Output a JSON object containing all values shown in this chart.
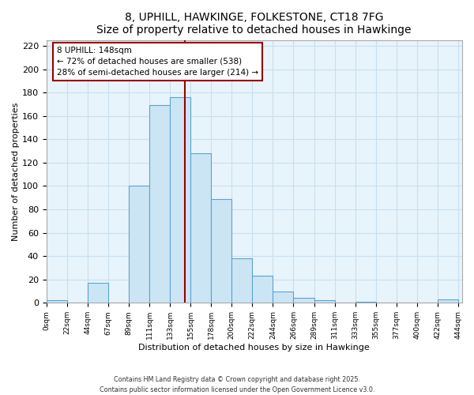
{
  "title": "8, UPHILL, HAWKINGE, FOLKESTONE, CT18 7FG",
  "subtitle": "Size of property relative to detached houses in Hawkinge",
  "xlabel": "Distribution of detached houses by size in Hawkinge",
  "ylabel": "Number of detached properties",
  "bin_labels": [
    "0sqm",
    "22sqm",
    "44sqm",
    "67sqm",
    "89sqm",
    "111sqm",
    "133sqm",
    "155sqm",
    "178sqm",
    "200sqm",
    "222sqm",
    "244sqm",
    "266sqm",
    "289sqm",
    "311sqm",
    "333sqm",
    "355sqm",
    "377sqm",
    "400sqm",
    "422sqm",
    "444sqm"
  ],
  "bar_values": [
    2,
    0,
    17,
    0,
    100,
    169,
    176,
    128,
    89,
    38,
    23,
    10,
    4,
    2,
    0,
    1,
    0,
    0,
    0,
    3
  ],
  "bar_color": "#cce5f5",
  "bar_edge_color": "#5ba3d0",
  "vline_x": 148,
  "vline_color": "#990000",
  "annotation_title": "8 UPHILL: 148sqm",
  "annotation_line1": "← 72% of detached houses are smaller (538)",
  "annotation_line2": "28% of semi-detached houses are larger (214) →",
  "annotation_box_facecolor": "#ffffff",
  "annotation_box_edgecolor": "#990000",
  "ylim": [
    0,
    225
  ],
  "yticks": [
    0,
    20,
    40,
    60,
    80,
    100,
    120,
    140,
    160,
    180,
    200,
    220
  ],
  "footnote1": "Contains HM Land Registry data © Crown copyright and database right 2025.",
  "footnote2": "Contains public sector information licensed under the Open Government Licence v3.0.",
  "bin_width": 22,
  "grid_color": "#c8dff0",
  "bg_color": "#e8f4fb"
}
